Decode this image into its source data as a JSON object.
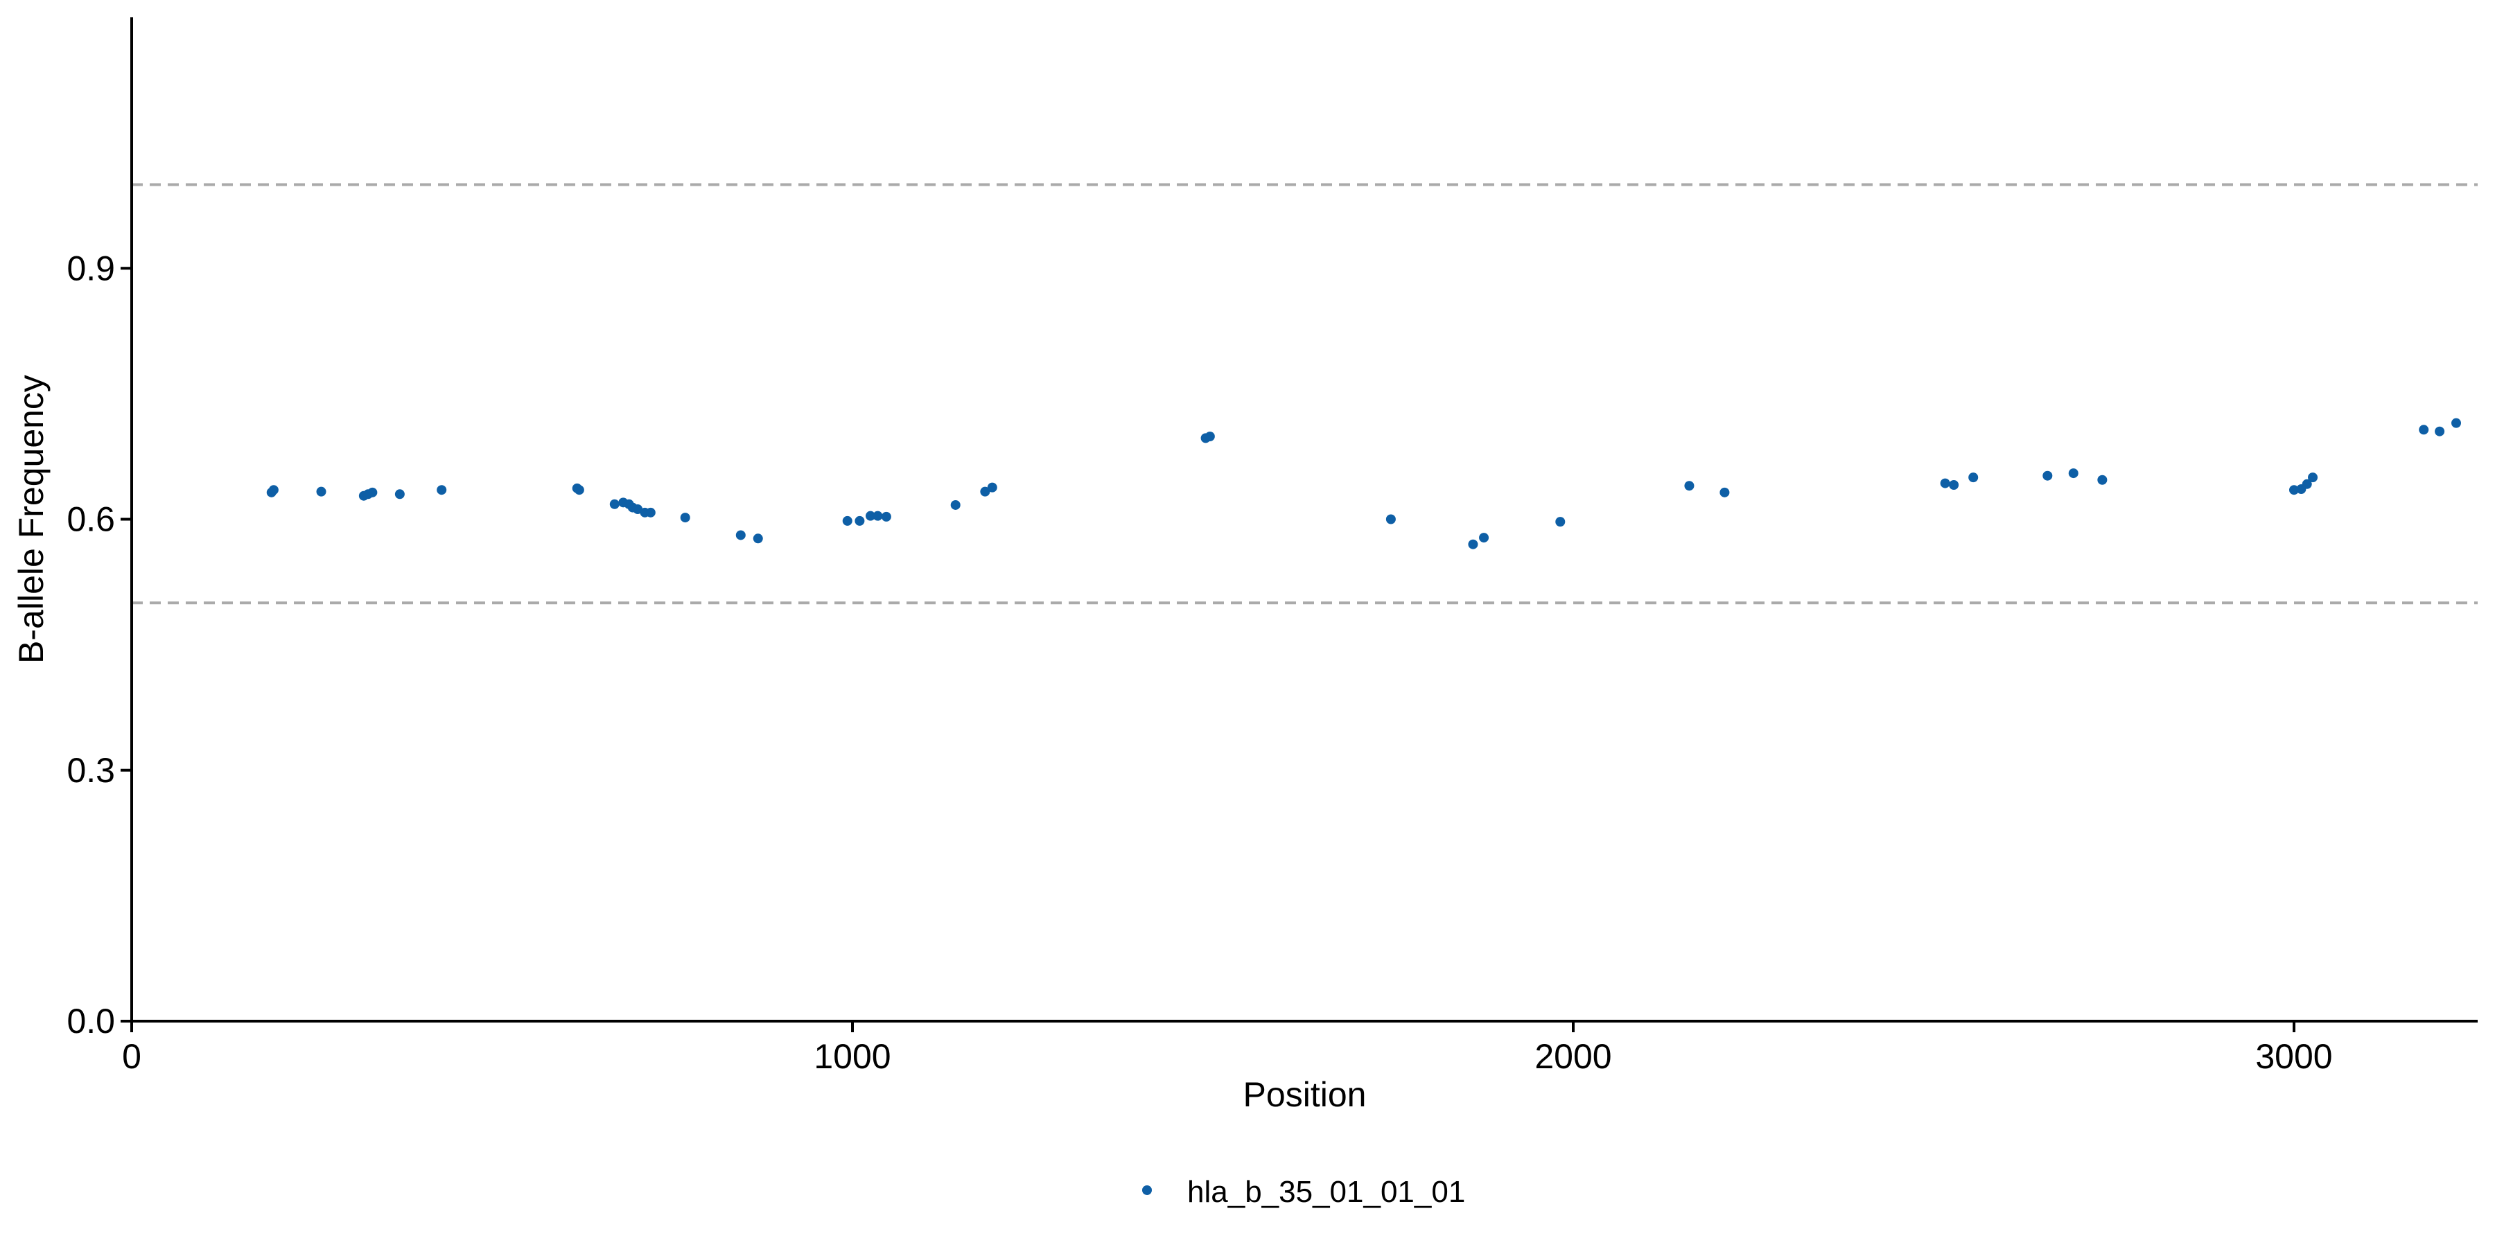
{
  "chart_data": {
    "type": "scatter",
    "xlabel": "Position",
    "ylabel": "B-allele Frequency",
    "xlim": [
      0,
      3250
    ],
    "ylim": [
      0,
      1.2
    ],
    "x_ticks": [
      0,
      1000,
      2000,
      3000
    ],
    "x_tick_labels": [
      "0",
      "1000",
      "2000",
      "3000"
    ],
    "y_ticks": [
      0,
      0.3,
      0.6,
      0.9
    ],
    "y_tick_labels": [
      "0.0",
      "0.3",
      "0.6",
      "0.9"
    ],
    "reference_lines": [
      0.5,
      1.0
    ],
    "grid": false,
    "legend_position": "bottom",
    "series": [
      {
        "name": "hla_b_35_01_01_01",
        "color": "#0E5FA6",
        "points": [
          [
            194,
            0.632
          ],
          [
            197,
            0.635
          ],
          [
            263,
            0.633
          ],
          [
            322,
            0.628
          ],
          [
            328,
            0.63
          ],
          [
            334,
            0.632
          ],
          [
            372,
            0.63
          ],
          [
            430,
            0.635
          ],
          [
            618,
            0.637
          ],
          [
            621,
            0.635
          ],
          [
            670,
            0.618
          ],
          [
            682,
            0.62
          ],
          [
            690,
            0.618
          ],
          [
            695,
            0.614
          ],
          [
            702,
            0.612
          ],
          [
            712,
            0.608
          ],
          [
            720,
            0.608
          ],
          [
            768,
            0.602
          ],
          [
            845,
            0.581
          ],
          [
            869,
            0.577
          ],
          [
            993,
            0.598
          ],
          [
            1010,
            0.598
          ],
          [
            1025,
            0.604
          ],
          [
            1035,
            0.604
          ],
          [
            1047,
            0.603
          ],
          [
            1143,
            0.617
          ],
          [
            1184,
            0.633
          ],
          [
            1194,
            0.638
          ],
          [
            1490,
            0.697
          ],
          [
            1496,
            0.699
          ],
          [
            1747,
            0.6
          ],
          [
            1861,
            0.57
          ],
          [
            1876,
            0.578
          ],
          [
            1982,
            0.597
          ],
          [
            2161,
            0.64
          ],
          [
            2210,
            0.632
          ],
          [
            2516,
            0.643
          ],
          [
            2528,
            0.641
          ],
          [
            2555,
            0.65
          ],
          [
            2658,
            0.652
          ],
          [
            2694,
            0.655
          ],
          [
            2734,
            0.647
          ],
          [
            3000,
            0.635
          ],
          [
            3010,
            0.636
          ],
          [
            3018,
            0.642
          ],
          [
            3026,
            0.65
          ],
          [
            3180,
            0.707
          ],
          [
            3202,
            0.705
          ],
          [
            3225,
            0.715
          ]
        ]
      }
    ]
  }
}
